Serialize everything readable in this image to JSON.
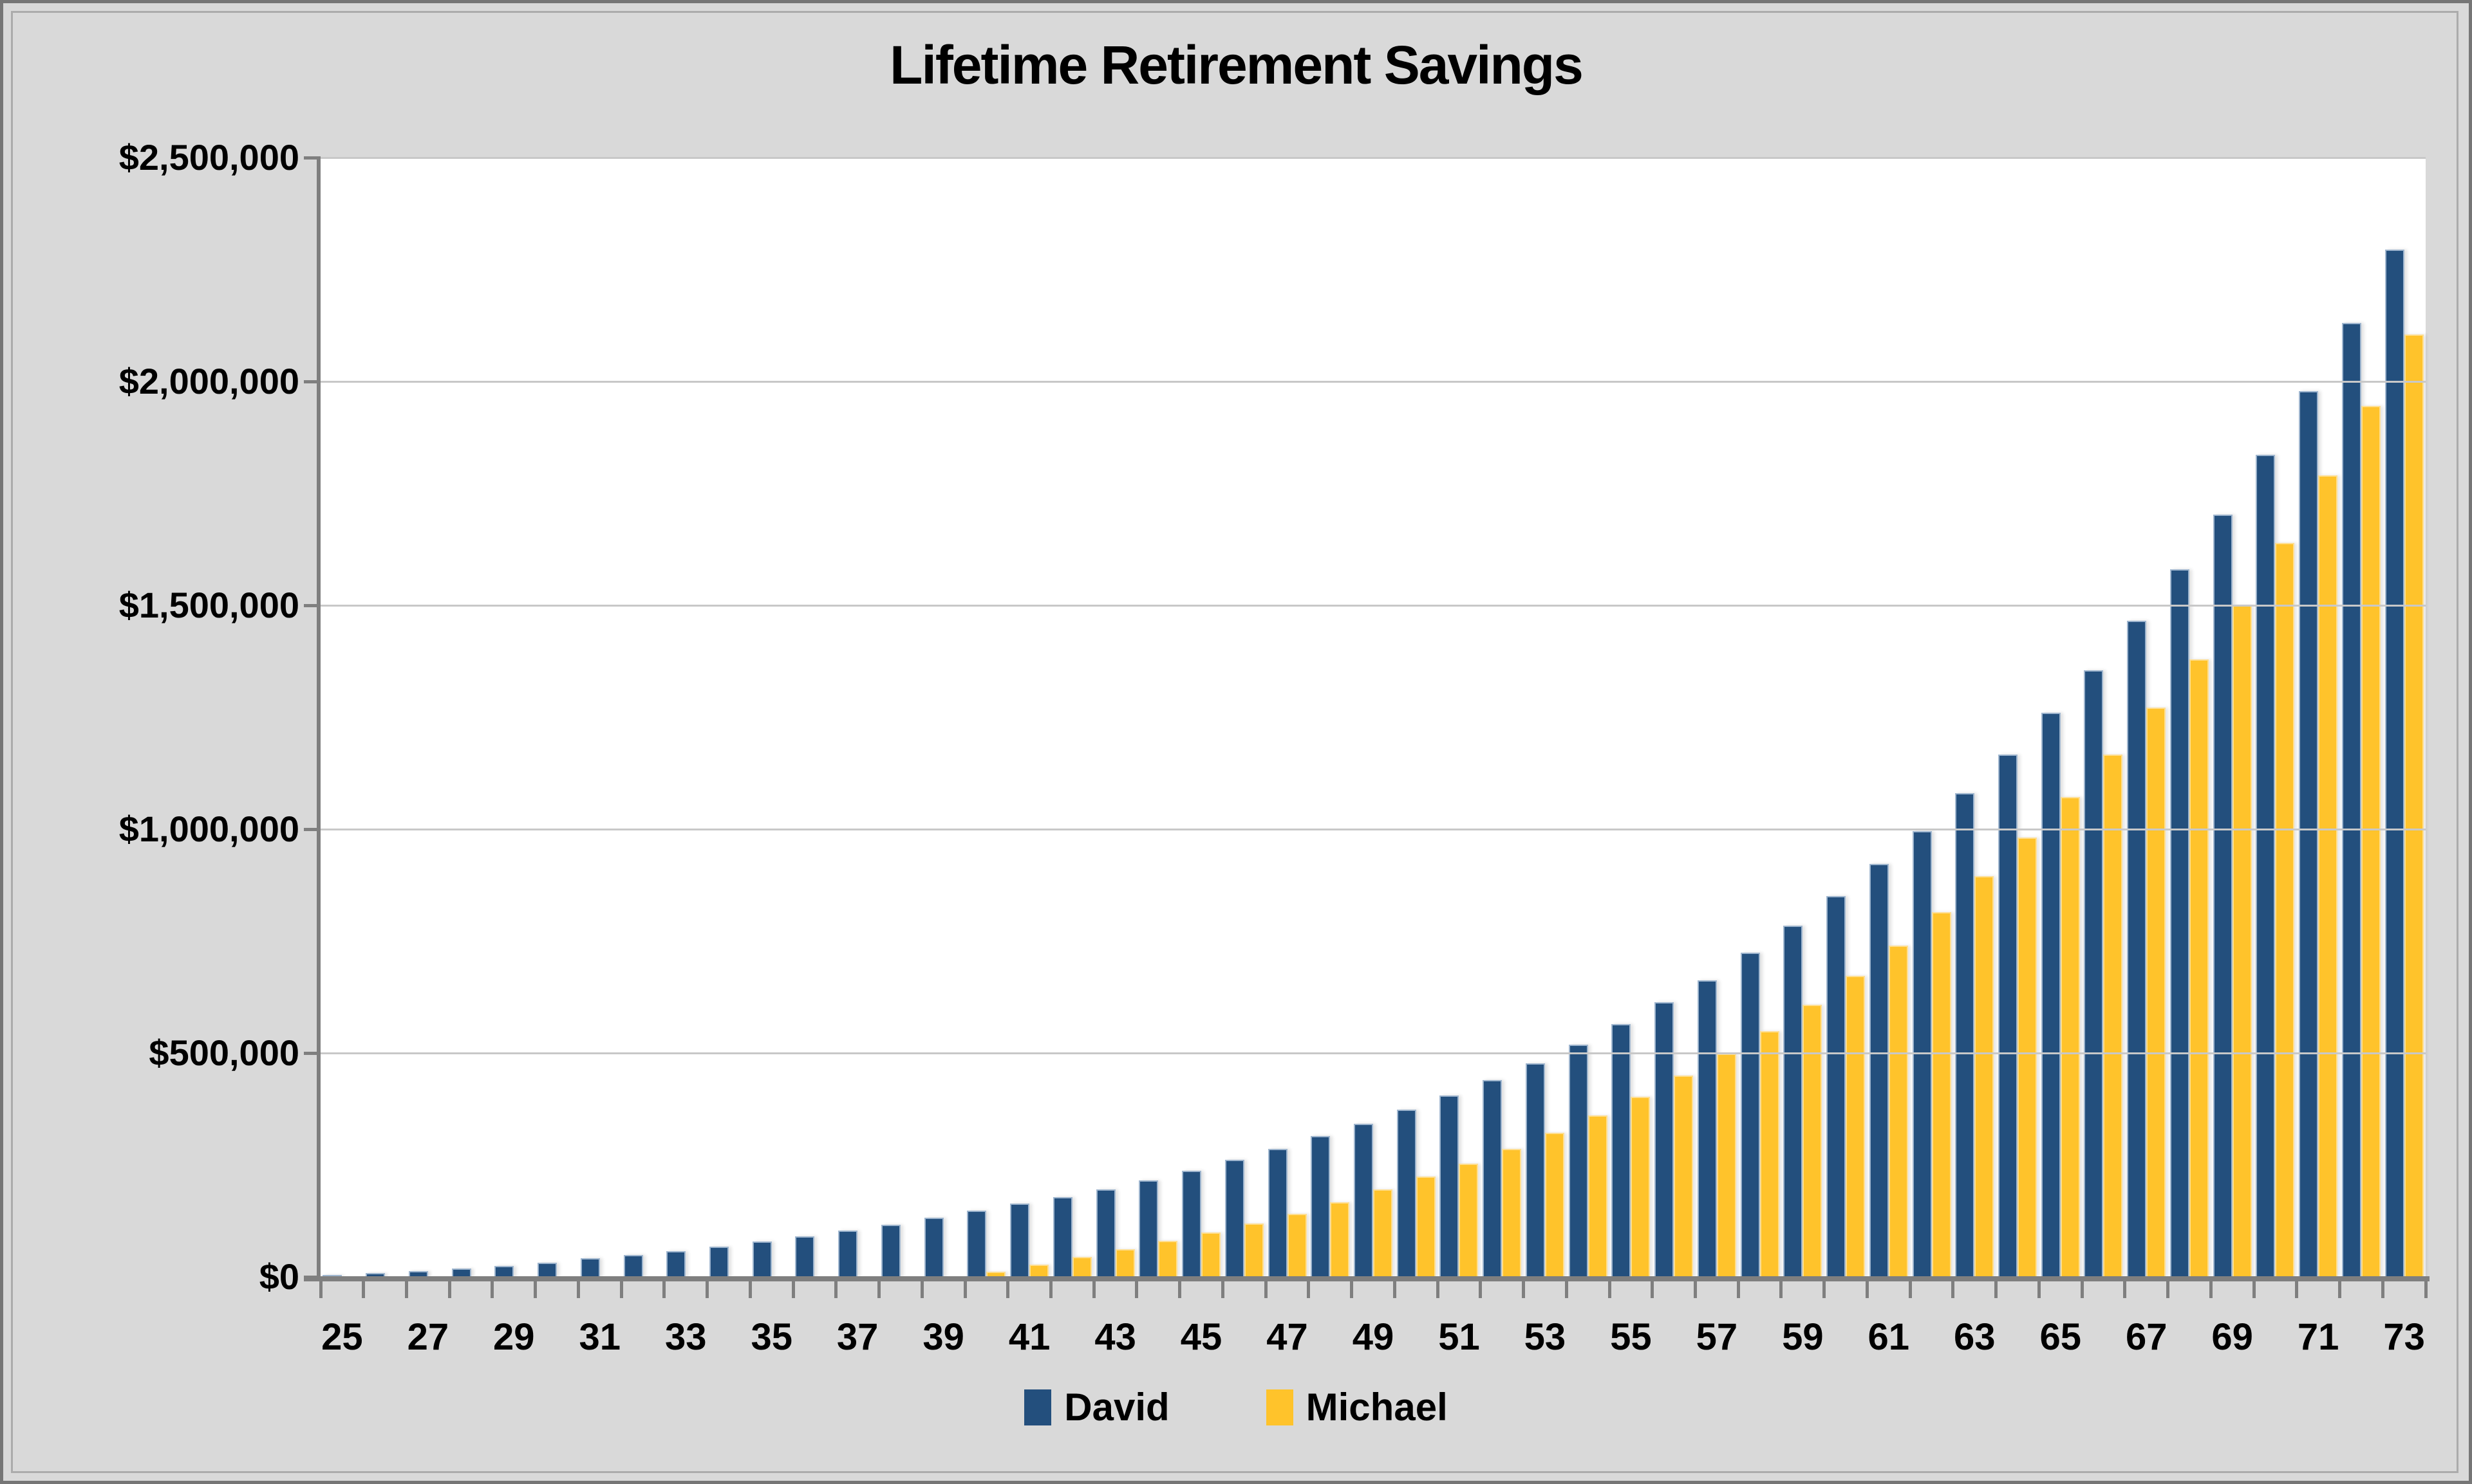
{
  "chart_data": {
    "type": "bar",
    "title": "Lifetime Retirement Savings",
    "xlabel": "",
    "ylabel": "",
    "categories": [
      25,
      26,
      27,
      28,
      29,
      30,
      31,
      32,
      33,
      34,
      35,
      36,
      37,
      38,
      39,
      40,
      41,
      42,
      43,
      44,
      45,
      46,
      47,
      48,
      49,
      50,
      51,
      52,
      53,
      54,
      55,
      56,
      57,
      58,
      59,
      60,
      61,
      62,
      63,
      64,
      65,
      66,
      67,
      68,
      69,
      70,
      71,
      72,
      73
    ],
    "x_tick_labels": [
      "25",
      "27",
      "29",
      "31",
      "33",
      "35",
      "37",
      "39",
      "41",
      "43",
      "45",
      "47",
      "49",
      "51",
      "53",
      "55",
      "57",
      "59",
      "61",
      "63",
      "65",
      "67",
      "69",
      "71",
      "73"
    ],
    "series": [
      {
        "name": "David",
        "color": "#234F7D",
        "values": [
          4000,
          8000,
          13000,
          18000,
          24000,
          32000,
          41000,
          49000,
          57000,
          68000,
          79000,
          91000,
          103000,
          117000,
          132000,
          148000,
          164000,
          178000,
          196000,
          216000,
          237000,
          261000,
          286000,
          314000,
          342000,
          373000,
          405000,
          440000,
          477000,
          519000,
          564000,
          613000,
          662000,
          724000,
          784000,
          850000,
          922000,
          996000,
          1080000,
          1167000,
          1260000,
          1355000,
          1465000,
          1581000,
          1703000,
          1836000,
          1979000,
          2131000,
          2295000
        ]
      },
      {
        "name": "Michael",
        "color": "#FFC32B",
        "values": [
          0,
          0,
          0,
          0,
          0,
          0,
          0,
          0,
          0,
          0,
          0,
          0,
          0,
          0,
          0,
          11000,
          27000,
          44000,
          62000,
          80000,
          99000,
          119000,
          141000,
          166000,
          195000,
          224000,
          253000,
          286000,
          322000,
          361000,
          403000,
          449000,
          498000,
          549000,
          608000,
          672000,
          740000,
          814000,
          895000,
          981000,
          1072000,
          1167000,
          1272000,
          1380000,
          1500000,
          1640000,
          1790000,
          1945000,
          2105000
        ]
      }
    ],
    "ylim": [
      0,
      2500000
    ],
    "y_tick_step": 500000,
    "y_tick_labels": [
      "$0",
      "$500,000",
      "$1,000,000",
      "$1,500,000",
      "$2,000,000",
      "$2,500,000"
    ],
    "grid": true,
    "legend_position": "bottom"
  },
  "colors": {
    "background": "#D9D9D9",
    "plot_background": "#FFFFFF",
    "gridline": "#C8C8C8",
    "axis": "#7F7F7F",
    "text": "#000000",
    "david": "#234F7D",
    "michael": "#FFC32B"
  }
}
